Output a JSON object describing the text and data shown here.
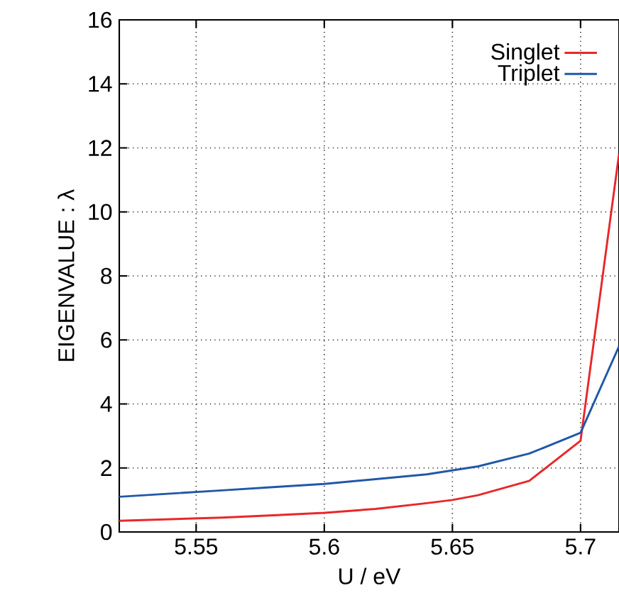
{
  "chart_data": {
    "type": "line",
    "xlabel": "U / eV",
    "ylabel": "EIGENVALUE : λ",
    "xlim": [
      5.52,
      5.715
    ],
    "ylim": [
      0,
      16
    ],
    "xticks": [
      5.55,
      5.6,
      5.65,
      5.7
    ],
    "yticks": [
      0,
      2,
      4,
      6,
      8,
      10,
      12,
      14,
      16
    ],
    "grid": true,
    "legend": "top right",
    "marker": "none",
    "line_style": "solid",
    "series": [
      {
        "name": "Singlet",
        "color": "#e8272a",
        "x": [
          5.52,
          5.54,
          5.56,
          5.58,
          5.6,
          5.62,
          5.64,
          5.65,
          5.66,
          5.68,
          5.7,
          5.715
        ],
        "values": [
          0.35,
          0.4,
          0.45,
          0.52,
          0.6,
          0.72,
          0.9,
          1.0,
          1.15,
          1.6,
          2.85,
          11.8
        ]
      },
      {
        "name": "Triplet",
        "color": "#2158a8",
        "x": [
          5.52,
          5.54,
          5.56,
          5.58,
          5.6,
          5.62,
          5.64,
          5.66,
          5.68,
          5.7,
          5.715
        ],
        "values": [
          1.1,
          1.2,
          1.3,
          1.4,
          1.5,
          1.65,
          1.8,
          2.05,
          2.45,
          3.1,
          5.8
        ]
      }
    ]
  }
}
